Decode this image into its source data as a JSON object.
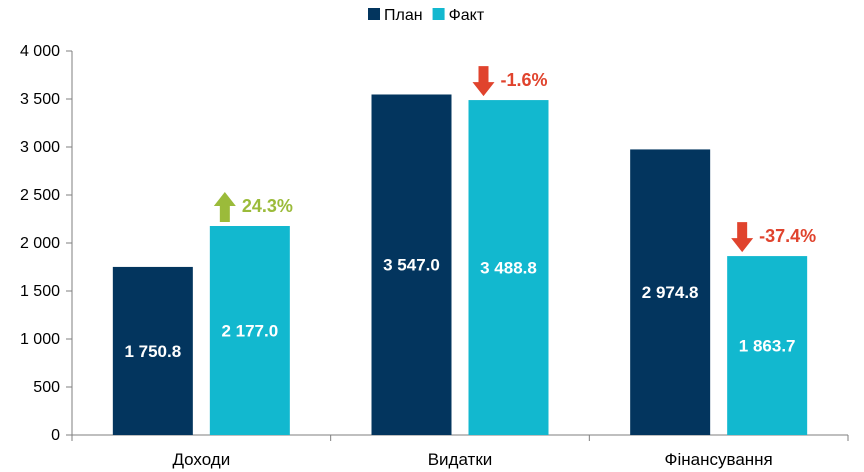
{
  "chart_data": {
    "type": "bar",
    "categories": [
      "Доходи",
      "Видатки",
      "Фінансування"
    ],
    "series": [
      {
        "name": "План",
        "values": [
          1750.8,
          3547.0,
          2974.8
        ],
        "labels": [
          "1 750.8",
          "3 547.0",
          "2 974.8"
        ],
        "color": "#03355E"
      },
      {
        "name": "Факт",
        "values": [
          2177.0,
          3488.8,
          1863.7
        ],
        "labels": [
          "2 177.0",
          "3 488.8",
          "1 863.7"
        ],
        "color": "#12B8CF"
      }
    ],
    "changes": [
      {
        "label": "24.3%",
        "direction": "up",
        "color": "#9BBB3A"
      },
      {
        "label": "-1.6%",
        "direction": "down",
        "color": "#E0432D"
      },
      {
        "label": "-37.4%",
        "direction": "down",
        "color": "#E0432D"
      }
    ],
    "ylim": [
      0,
      4000
    ],
    "yticks": [
      0,
      500,
      1000,
      1500,
      2000,
      2500,
      3000,
      3500,
      4000
    ],
    "ytick_labels": [
      "0",
      "500",
      "1 000",
      "1 500",
      "2 000",
      "2 500",
      "3 000",
      "3 500",
      "4 000"
    ],
    "grid": false,
    "legend_position": "top-center",
    "title": "",
    "xlabel": "",
    "ylabel": ""
  }
}
